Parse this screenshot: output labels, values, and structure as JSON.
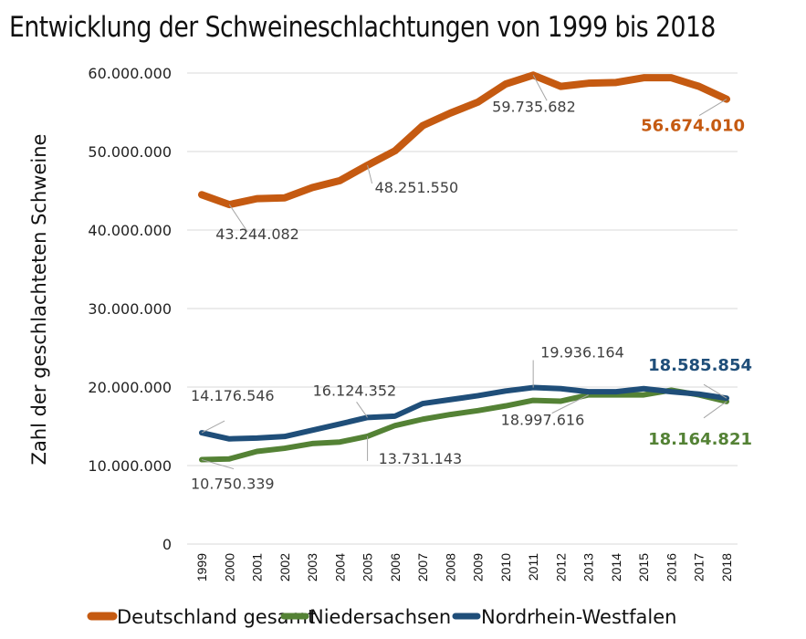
{
  "chart_data": {
    "type": "line",
    "title": "Entwicklung der Schweineschlachtungen von 1999 bis 2018",
    "xlabel": "",
    "ylabel": "Zahl der geschlachteten Schweine",
    "ylim": [
      0,
      60000000
    ],
    "yticks": [
      0,
      10000000,
      20000000,
      30000000,
      40000000,
      50000000,
      60000000
    ],
    "ytick_labels": [
      "0",
      "10.000.000",
      "20.000.000",
      "30.000.000",
      "40.000.000",
      "50.000.000",
      "60.000.000"
    ],
    "grid": true,
    "legend_position": "bottom",
    "categories": [
      "1999",
      "2000",
      "2001",
      "2002",
      "2003",
      "2004",
      "2005",
      "2006",
      "2007",
      "2008",
      "2009",
      "2010",
      "2011",
      "2012",
      "2013",
      "2014",
      "2015",
      "2016",
      "2017",
      "2018"
    ],
    "series": [
      {
        "name": "Deutschland gesamt",
        "color": "#c55a11",
        "values": [
          44500000,
          43244082,
          44000000,
          44100000,
          45400000,
          46300000,
          48251550,
          50100000,
          53300000,
          54900000,
          56300000,
          58600000,
          59735682,
          58300000,
          58700000,
          58800000,
          59400000,
          59400000,
          58300000,
          56674010
        ]
      },
      {
        "name": "Niedersachsen",
        "color": "#548235",
        "values": [
          10750339,
          10850000,
          11800000,
          12200000,
          12800000,
          13000000,
          13731143,
          15100000,
          15900000,
          16500000,
          17000000,
          17600000,
          18300000,
          18200000,
          18997616,
          18997616,
          19000000,
          19600000,
          19000000,
          18164821
        ]
      },
      {
        "name": "Nordrhein-Westfalen",
        "color": "#1f4e79",
        "values": [
          14176546,
          13400000,
          13500000,
          13700000,
          14500000,
          15300000,
          16124352,
          16300000,
          17900000,
          18400000,
          18900000,
          19500000,
          19936164,
          19800000,
          19400000,
          19400000,
          19800000,
          19400000,
          19100000,
          18585854
        ]
      }
    ],
    "annotations": [
      {
        "series": 0,
        "index": 1,
        "text": "43.244.082",
        "bold": false
      },
      {
        "series": 0,
        "index": 6,
        "text": "48.251.550",
        "bold": false
      },
      {
        "series": 0,
        "index": 12,
        "text": "59.735.682",
        "bold": false
      },
      {
        "series": 0,
        "index": 19,
        "text": "56.674.010",
        "bold": true
      },
      {
        "series": 2,
        "index": 0,
        "text": "14.176.546",
        "bold": false
      },
      {
        "series": 2,
        "index": 6,
        "text": "16.124.352",
        "bold": false
      },
      {
        "series": 2,
        "index": 12,
        "text": "19.936.164",
        "bold": false
      },
      {
        "series": 2,
        "index": 19,
        "text": "18.585.854",
        "bold": true
      },
      {
        "series": 1,
        "index": 0,
        "text": "10.750.339",
        "bold": false
      },
      {
        "series": 1,
        "index": 6,
        "text": "13.731.143",
        "bold": false
      },
      {
        "series": 1,
        "index": 14,
        "text": "18.997.616",
        "bold": false
      },
      {
        "series": 1,
        "index": 19,
        "text": "18.164.821",
        "bold": true
      }
    ]
  }
}
